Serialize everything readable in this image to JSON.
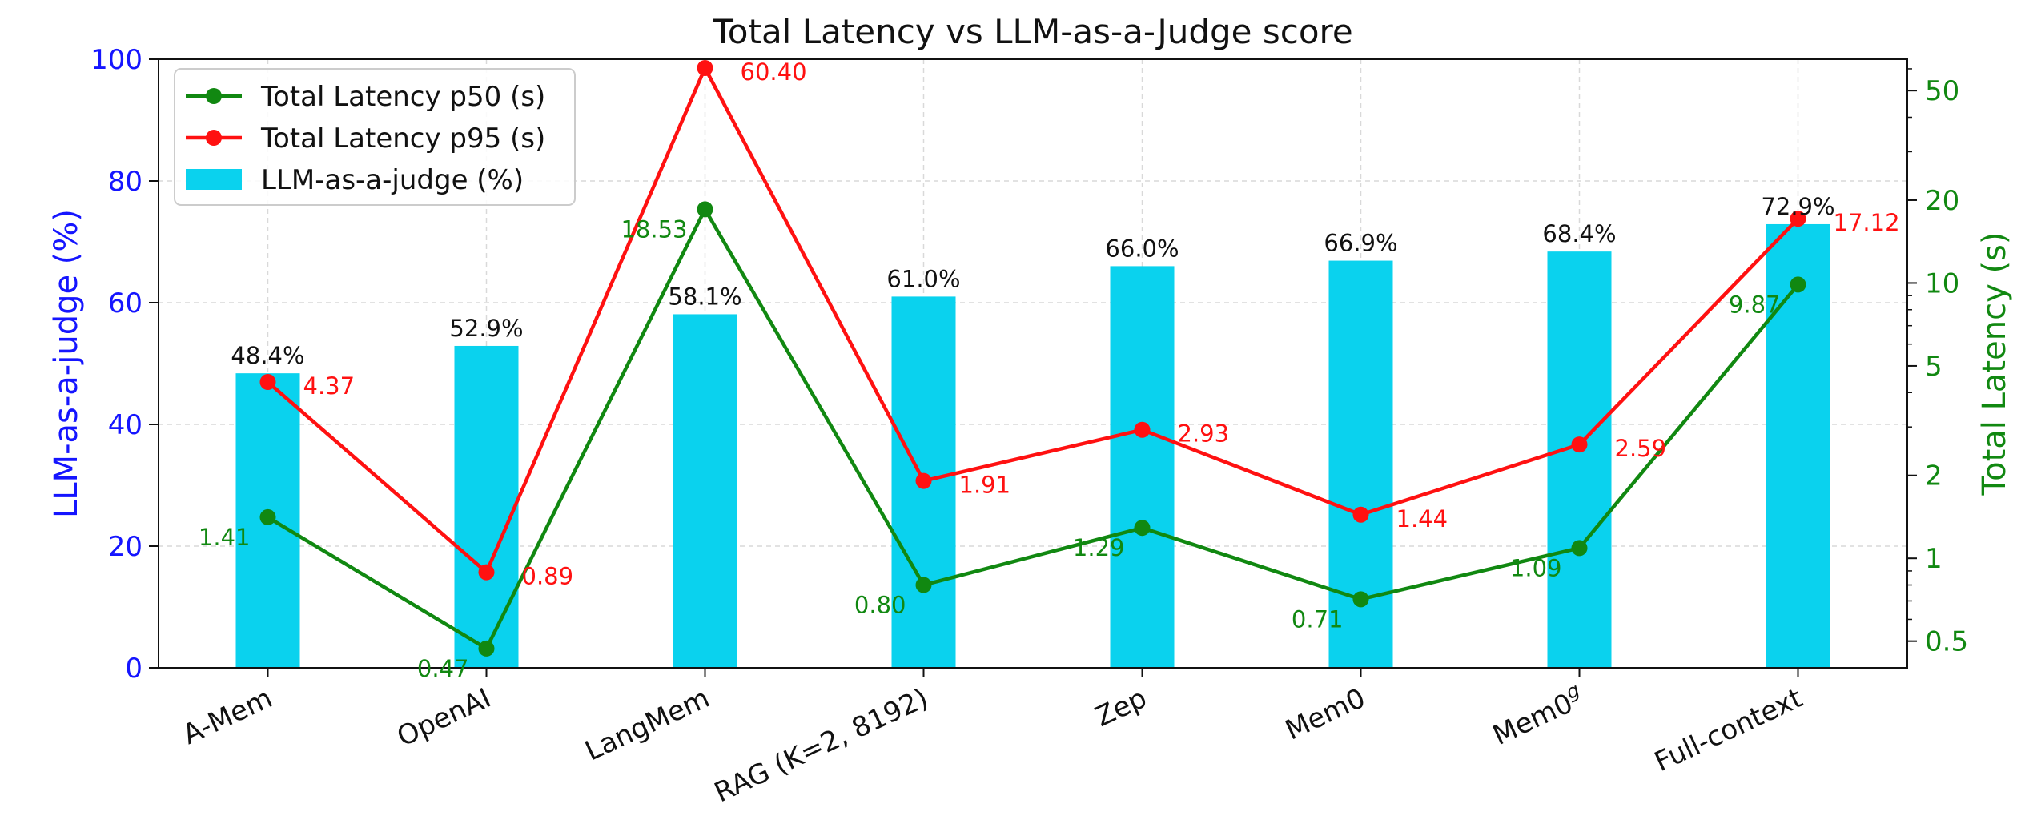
{
  "chart_data": {
    "type": "bar",
    "title": "Total Latency vs LLM-as-a-Judge score",
    "categories": [
      "A-Mem",
      "OpenAI",
      "LangMem",
      "RAG (K=2, 8192)",
      "Zep",
      "Mem0",
      "Mem0",
      "Full-context"
    ],
    "category_superscripts": [
      "",
      "",
      "",
      "",
      "",
      "",
      "g",
      ""
    ],
    "ylabel": "LLM-as-a-judge (%)",
    "ylim": [
      0,
      100
    ],
    "yticks": [
      "0",
      "20",
      "40",
      "60",
      "80",
      "100"
    ],
    "y2label": "Total Latency (s)",
    "y2scale": "log",
    "y2lim": [
      0.4,
      65
    ],
    "y2ticks": [
      "0.5",
      "1",
      "2",
      "5",
      "10",
      "20",
      "50"
    ],
    "grid": true,
    "legend_position": "upper-left",
    "series": [
      {
        "name": "LLM-as-a-judge (%)",
        "type": "bar",
        "axis": "left",
        "color": "#0ad2ee",
        "values": [
          48.4,
          52.9,
          58.1,
          61.0,
          66.0,
          66.9,
          68.4,
          72.9
        ],
        "labels": [
          "48.4%",
          "52.9%",
          "58.1%",
          "61.0%",
          "66.0%",
          "66.9%",
          "68.4%",
          "72.9%"
        ]
      },
      {
        "name": "Total Latency p50 (s)",
        "type": "line",
        "axis": "right",
        "color": "#118811",
        "values": [
          1.41,
          0.47,
          18.53,
          0.8,
          1.29,
          0.71,
          1.09,
          9.87
        ],
        "labels": [
          "1.41",
          "0.47",
          "18.53",
          "0.80",
          "1.29",
          "0.71",
          "1.09",
          "9.87"
        ]
      },
      {
        "name": "Total Latency p95 (s)",
        "type": "line",
        "axis": "right",
        "color": "#ff1111",
        "values": [
          4.37,
          0.89,
          60.4,
          1.91,
          2.93,
          1.44,
          2.59,
          17.12
        ],
        "labels": [
          "4.37",
          "0.89",
          "60.40",
          "1.91",
          "2.93",
          "1.44",
          "2.59",
          "17.12"
        ]
      }
    ]
  },
  "colors": {
    "left_axis": "#1515ff",
    "right_axis": "#118811",
    "text": "#111111"
  }
}
